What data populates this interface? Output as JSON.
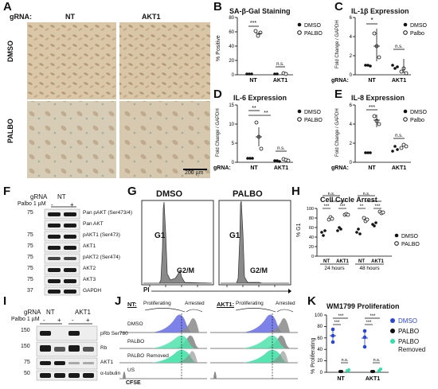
{
  "panel_letters": [
    "A",
    "B",
    "C",
    "D",
    "E",
    "F",
    "G",
    "H",
    "I",
    "J",
    "K"
  ],
  "panelA": {
    "grna_label": "gRNA:",
    "cols": [
      "NT",
      "AKT1"
    ],
    "rows": [
      "DMSO",
      "PALBO"
    ],
    "scalebar": "200 µm"
  },
  "panelB": {
    "title": "SA-β-Gal Staining",
    "ylabel": "% Positive",
    "legend": [
      "DMSO",
      "PALBO"
    ],
    "xcats": [
      "NT",
      "AKT1"
    ],
    "sig": [
      "***",
      "n.s."
    ],
    "yticks": [
      "0",
      "20",
      "40",
      "60",
      "80"
    ]
  },
  "panelC": {
    "title": "IL-1β Expression",
    "ylabel": "Fold Change / GAPDH",
    "legend": [
      "DMSO",
      "Palbo"
    ],
    "xcats": [
      "NT",
      "AKT1"
    ],
    "grna": "gRNA:",
    "sig": [
      "*",
      "n.s."
    ],
    "yticks": [
      "0",
      "2",
      "4",
      "6"
    ]
  },
  "panelD": {
    "title": "IL-6 Expression",
    "ylabel": "Fold Change / GAPDH",
    "legend": [
      "DMSO",
      "PALBO"
    ],
    "xcats": [
      "NT",
      "AKT1"
    ],
    "grna": "gRNA:",
    "sig": [
      "**",
      "**",
      "n.s."
    ],
    "yticks": [
      "0",
      "5",
      "10",
      "15"
    ]
  },
  "panelE": {
    "title": "IL-8 Expression",
    "ylabel": "Fold Change / GAPDH",
    "legend": [
      "DMSO",
      "Palbo"
    ],
    "xcats": [
      "NT",
      "AKT1"
    ],
    "grna": "gRNA:",
    "sig": [
      "***",
      "n.s."
    ],
    "yticks": [
      "0",
      "2",
      "4",
      "6"
    ]
  },
  "panelF": {
    "gRNA": "gRNA",
    "NT": "NT",
    "palbo": "Palbo 1 µM",
    "treat": [
      "-",
      "+"
    ],
    "mw": [
      "75",
      "75",
      "75",
      "75",
      "75",
      "75",
      "37"
    ],
    "bands": [
      "Pan pAKT (Ser473/4)",
      "Pan AKT",
      "pAKT1 (Ser473)",
      "AKT1",
      "pAKT2 (Ser474)",
      "AKT2",
      "AKT3",
      "GAPDH"
    ]
  },
  "panelG": {
    "titles": [
      "DMSO",
      "PALBO"
    ],
    "g1": "G1",
    "g2m": "G2/M",
    "xlabel": "PI"
  },
  "panelH": {
    "title": "Cell Cycle Arrest",
    "ylabel": "% G1",
    "legend": [
      "DMSO",
      "PALBO"
    ],
    "xcats": [
      "NT",
      "AKT1",
      "NT",
      "AKT1"
    ],
    "times": [
      "24 hours",
      "48 hours"
    ],
    "sig": [
      "n.s.",
      "n.s.",
      "***",
      "***",
      "**",
      "***"
    ],
    "yticks": [
      "0",
      "20",
      "40",
      "60",
      "80",
      "100"
    ]
  },
  "panelI": {
    "gRNA": "gRNA",
    "cols": [
      "NT",
      "AKT1"
    ],
    "palbo": "Palbo 1 µM",
    "treat": [
      "-",
      "+",
      "-",
      "+"
    ],
    "mw": [
      "150",
      "150",
      "75",
      "50"
    ],
    "bands": [
      "pRb Ser780",
      "Rb",
      "AKT1",
      "α-tubulin"
    ]
  },
  "panelJ": {
    "headers": [
      "NT:",
      "AKT1:"
    ],
    "sub": [
      "Proliferating",
      "Arrested"
    ],
    "rows": [
      "DMSO",
      "PALBO",
      "PALBO",
      "US"
    ],
    "removed": "Removed",
    "xlabel": "CFSE"
  },
  "panelK": {
    "title": "WM1799 Proliferation",
    "ylabel": "% Proliferating",
    "legend": [
      "DMSO",
      "PALBO",
      "PALBO\nRemoved"
    ],
    "xcats": [
      "NT",
      "AKT1"
    ],
    "sig": [
      "***",
      "***",
      "n.s.",
      "***",
      "***",
      "n.s."
    ],
    "yticks": [
      "0",
      "20",
      "40",
      "60",
      "80",
      "100"
    ]
  },
  "colors": {
    "dmso": "#2b45d6",
    "palbo": "#111111",
    "removed": "#2fe0a8",
    "histBlue": "#6e74e6",
    "histGrey": "#8a8a8a",
    "histGreen": "#4fe3ad"
  }
}
